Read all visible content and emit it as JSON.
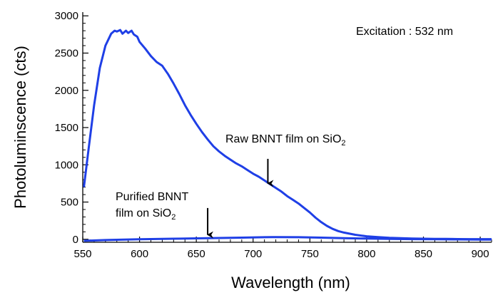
{
  "chart_data": {
    "type": "line",
    "xlabel": "Wavelength (nm)",
    "ylabel": "Photoluminscence (cts)",
    "xlim": [
      550,
      910
    ],
    "ylim": [
      -40,
      3050
    ],
    "xticks": [
      550,
      600,
      650,
      700,
      750,
      800,
      850,
      900
    ],
    "yticks": [
      0,
      500,
      1000,
      1500,
      2000,
      2500,
      3000
    ],
    "grid": false,
    "color": "#1f3fe6",
    "annotations": {
      "excitation": "Excitation : 532 nm",
      "raw": {
        "text": "Raw BNNT film on SiO",
        "subscript": "2",
        "arrow_x": 713,
        "arrow_from_y": 1080,
        "arrow_to_y": 750
      },
      "purified": {
        "line1": "Purified BNNT",
        "line2": "film on SiO",
        "subscript": "2",
        "arrow_x": 660,
        "arrow_from_y": 420,
        "arrow_to_y": 60
      }
    },
    "series": [
      {
        "x": [
          551,
          555,
          560,
          565,
          570,
          575,
          578,
          580,
          583,
          585,
          588,
          590,
          593,
          595,
          598,
          600,
          605,
          610,
          615,
          620,
          625,
          630,
          635,
          640,
          645,
          650,
          655,
          660,
          665,
          670,
          675,
          680,
          685,
          690,
          695,
          700,
          705,
          710,
          715,
          720,
          725,
          730,
          735,
          740,
          745,
          750,
          755,
          760,
          765,
          770,
          775,
          780,
          790,
          800,
          810,
          820,
          830,
          840,
          850,
          860,
          870,
          880,
          890,
          900,
          910
        ],
        "values": [
          700,
          1200,
          1800,
          2300,
          2600,
          2760,
          2800,
          2790,
          2810,
          2760,
          2800,
          2770,
          2800,
          2750,
          2720,
          2650,
          2560,
          2460,
          2380,
          2330,
          2220,
          2090,
          1950,
          1800,
          1670,
          1550,
          1440,
          1340,
          1250,
          1180,
          1120,
          1070,
          1020,
          980,
          930,
          880,
          840,
          790,
          740,
          690,
          640,
          580,
          530,
          480,
          420,
          360,
          290,
          230,
          180,
          140,
          110,
          90,
          60,
          40,
          30,
          20,
          15,
          10,
          8,
          5,
          5,
          3,
          2,
          2,
          2
        ]
      },
      {
        "x": [
          551,
          570,
          600,
          630,
          660,
          690,
          710,
          720,
          740,
          760,
          780,
          800,
          820,
          840,
          860,
          880,
          900,
          910
        ],
        "values": [
          -20,
          -10,
          0,
          8,
          15,
          22,
          28,
          30,
          28,
          22,
          15,
          10,
          5,
          2,
          0,
          -2,
          -5,
          -5
        ]
      }
    ]
  }
}
